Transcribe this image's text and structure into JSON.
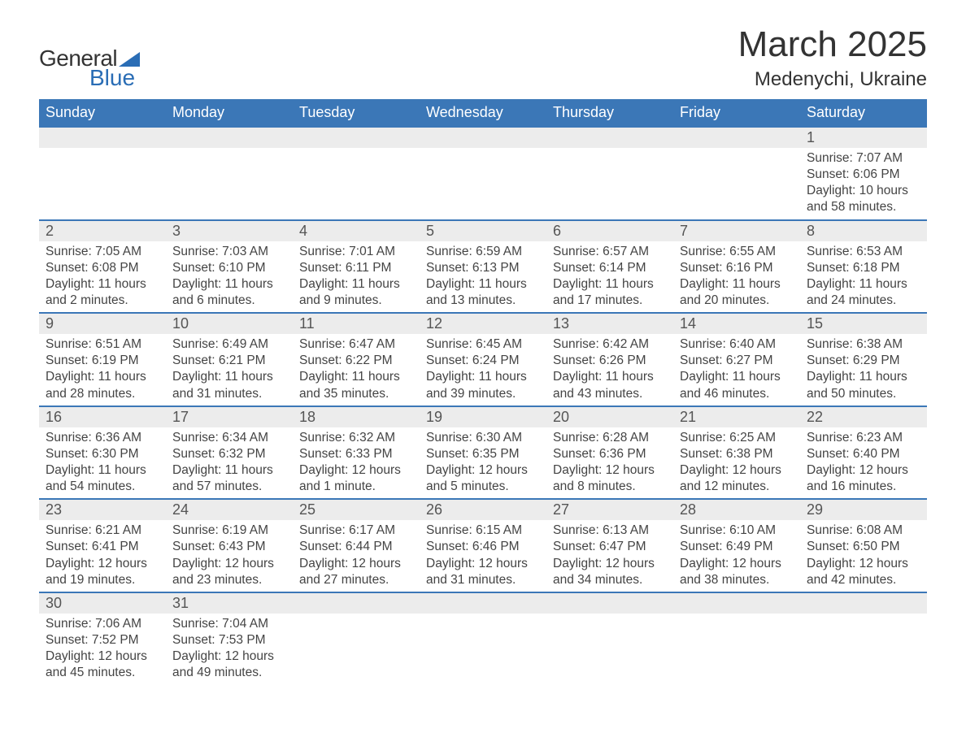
{
  "brand": {
    "word1": "General",
    "word2": "Blue"
  },
  "title": "March 2025",
  "location": "Medenychi, Ukraine",
  "colors": {
    "header_bg": "#3b77b7",
    "header_text": "#ffffff",
    "date_bg": "#ececec",
    "cell_bg": "#ffffff",
    "border": "#3b77b7",
    "text": "#333333",
    "brand_blue": "#2a6db5"
  },
  "typography": {
    "title_fontsize": 44,
    "location_fontsize": 24,
    "dow_fontsize": 18,
    "date_fontsize": 18,
    "cell_fontsize": 15.5,
    "logo_fontsize": 28
  },
  "days_of_week": [
    "Sunday",
    "Monday",
    "Tuesday",
    "Wednesday",
    "Thursday",
    "Friday",
    "Saturday"
  ],
  "weeks": [
    [
      null,
      null,
      null,
      null,
      null,
      null,
      {
        "date": "1",
        "sunrise": "7:07 AM",
        "sunset": "6:06 PM",
        "daylight": "10 hours and 58 minutes."
      }
    ],
    [
      {
        "date": "2",
        "sunrise": "7:05 AM",
        "sunset": "6:08 PM",
        "daylight": "11 hours and 2 minutes."
      },
      {
        "date": "3",
        "sunrise": "7:03 AM",
        "sunset": "6:10 PM",
        "daylight": "11 hours and 6 minutes."
      },
      {
        "date": "4",
        "sunrise": "7:01 AM",
        "sunset": "6:11 PM",
        "daylight": "11 hours and 9 minutes."
      },
      {
        "date": "5",
        "sunrise": "6:59 AM",
        "sunset": "6:13 PM",
        "daylight": "11 hours and 13 minutes."
      },
      {
        "date": "6",
        "sunrise": "6:57 AM",
        "sunset": "6:14 PM",
        "daylight": "11 hours and 17 minutes."
      },
      {
        "date": "7",
        "sunrise": "6:55 AM",
        "sunset": "6:16 PM",
        "daylight": "11 hours and 20 minutes."
      },
      {
        "date": "8",
        "sunrise": "6:53 AM",
        "sunset": "6:18 PM",
        "daylight": "11 hours and 24 minutes."
      }
    ],
    [
      {
        "date": "9",
        "sunrise": "6:51 AM",
        "sunset": "6:19 PM",
        "daylight": "11 hours and 28 minutes."
      },
      {
        "date": "10",
        "sunrise": "6:49 AM",
        "sunset": "6:21 PM",
        "daylight": "11 hours and 31 minutes."
      },
      {
        "date": "11",
        "sunrise": "6:47 AM",
        "sunset": "6:22 PM",
        "daylight": "11 hours and 35 minutes."
      },
      {
        "date": "12",
        "sunrise": "6:45 AM",
        "sunset": "6:24 PM",
        "daylight": "11 hours and 39 minutes."
      },
      {
        "date": "13",
        "sunrise": "6:42 AM",
        "sunset": "6:26 PM",
        "daylight": "11 hours and 43 minutes."
      },
      {
        "date": "14",
        "sunrise": "6:40 AM",
        "sunset": "6:27 PM",
        "daylight": "11 hours and 46 minutes."
      },
      {
        "date": "15",
        "sunrise": "6:38 AM",
        "sunset": "6:29 PM",
        "daylight": "11 hours and 50 minutes."
      }
    ],
    [
      {
        "date": "16",
        "sunrise": "6:36 AM",
        "sunset": "6:30 PM",
        "daylight": "11 hours and 54 minutes."
      },
      {
        "date": "17",
        "sunrise": "6:34 AM",
        "sunset": "6:32 PM",
        "daylight": "11 hours and 57 minutes."
      },
      {
        "date": "18",
        "sunrise": "6:32 AM",
        "sunset": "6:33 PM",
        "daylight": "12 hours and 1 minute."
      },
      {
        "date": "19",
        "sunrise": "6:30 AM",
        "sunset": "6:35 PM",
        "daylight": "12 hours and 5 minutes."
      },
      {
        "date": "20",
        "sunrise": "6:28 AM",
        "sunset": "6:36 PM",
        "daylight": "12 hours and 8 minutes."
      },
      {
        "date": "21",
        "sunrise": "6:25 AM",
        "sunset": "6:38 PM",
        "daylight": "12 hours and 12 minutes."
      },
      {
        "date": "22",
        "sunrise": "6:23 AM",
        "sunset": "6:40 PM",
        "daylight": "12 hours and 16 minutes."
      }
    ],
    [
      {
        "date": "23",
        "sunrise": "6:21 AM",
        "sunset": "6:41 PM",
        "daylight": "12 hours and 19 minutes."
      },
      {
        "date": "24",
        "sunrise": "6:19 AM",
        "sunset": "6:43 PM",
        "daylight": "12 hours and 23 minutes."
      },
      {
        "date": "25",
        "sunrise": "6:17 AM",
        "sunset": "6:44 PM",
        "daylight": "12 hours and 27 minutes."
      },
      {
        "date": "26",
        "sunrise": "6:15 AM",
        "sunset": "6:46 PM",
        "daylight": "12 hours and 31 minutes."
      },
      {
        "date": "27",
        "sunrise": "6:13 AM",
        "sunset": "6:47 PM",
        "daylight": "12 hours and 34 minutes."
      },
      {
        "date": "28",
        "sunrise": "6:10 AM",
        "sunset": "6:49 PM",
        "daylight": "12 hours and 38 minutes."
      },
      {
        "date": "29",
        "sunrise": "6:08 AM",
        "sunset": "6:50 PM",
        "daylight": "12 hours and 42 minutes."
      }
    ],
    [
      {
        "date": "30",
        "sunrise": "7:06 AM",
        "sunset": "7:52 PM",
        "daylight": "12 hours and 45 minutes."
      },
      {
        "date": "31",
        "sunrise": "7:04 AM",
        "sunset": "7:53 PM",
        "daylight": "12 hours and 49 minutes."
      },
      null,
      null,
      null,
      null,
      null
    ]
  ],
  "labels": {
    "sunrise": "Sunrise: ",
    "sunset": "Sunset: ",
    "daylight": "Daylight: "
  }
}
